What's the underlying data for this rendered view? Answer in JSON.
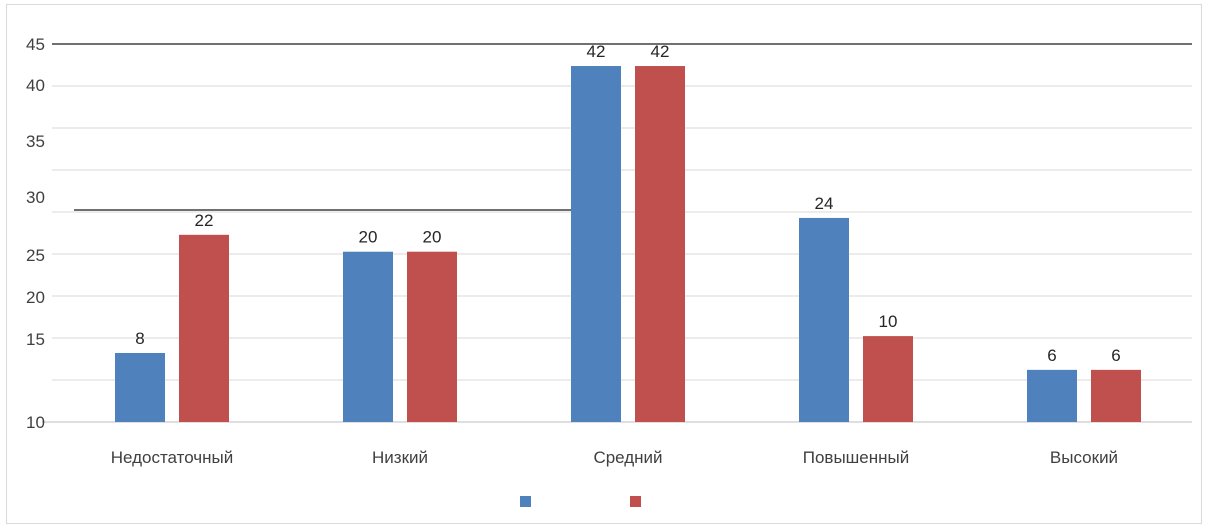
{
  "chart_data": {
    "type": "bar",
    "categories": [
      "Недостаточный",
      "Низкий",
      "Средний",
      "Повышенный",
      "Высокий"
    ],
    "series": [
      {
        "values": [
          8,
          20,
          42,
          24,
          6
        ],
        "color": "#4f81bd"
      },
      {
        "values": [
          22,
          20,
          42,
          10,
          6
        ],
        "color": "#c0504d"
      }
    ],
    "y_tick_labels": [
      "10",
      "15",
      "20",
      "25",
      "30",
      "35",
      "40",
      "45"
    ],
    "ylim": [
      0,
      45
    ],
    "grid": true,
    "legend_position": "bottom",
    "data_labels": true,
    "title": "",
    "xlabel": "",
    "ylabel": ""
  }
}
